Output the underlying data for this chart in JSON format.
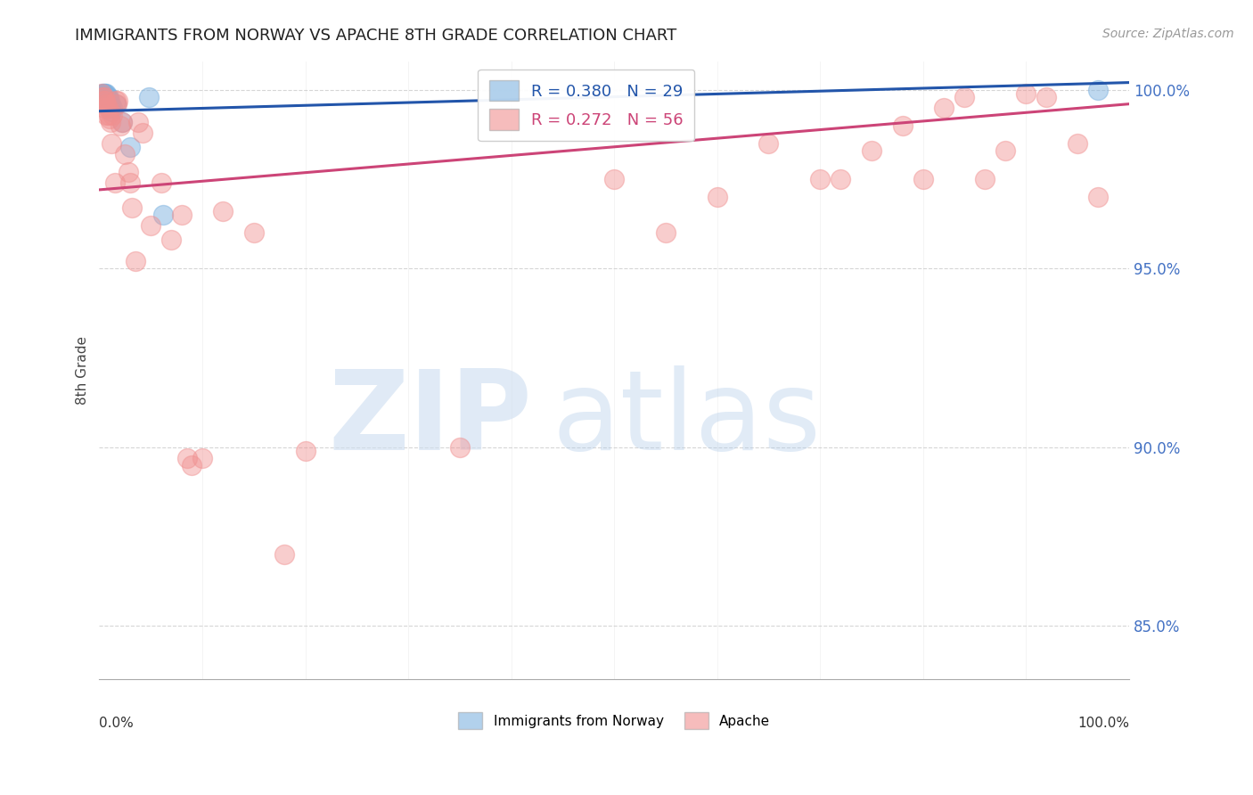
{
  "title": "IMMIGRANTS FROM NORWAY VS APACHE 8TH GRADE CORRELATION CHART",
  "source": "Source: ZipAtlas.com",
  "ylabel": "8th Grade",
  "legend_blue_r": "R = 0.380",
  "legend_blue_n": "N = 29",
  "legend_pink_r": "R = 0.272",
  "legend_pink_n": "N = 56",
  "ytick_vals": [
    0.85,
    0.9,
    0.95,
    1.0
  ],
  "ytick_labels": [
    "85.0%",
    "90.0%",
    "95.0%",
    "100.0%"
  ],
  "xlim": [
    0.0,
    1.0
  ],
  "ylim": [
    0.835,
    1.008
  ],
  "blue_color": "#7fb3e0",
  "pink_color": "#f09090",
  "blue_line_color": "#2255aa",
  "pink_line_color": "#cc4477",
  "grid_color": "#cccccc",
  "blue_scatter_x": [
    0.003,
    0.003,
    0.004,
    0.004,
    0.004,
    0.005,
    0.005,
    0.005,
    0.006,
    0.006,
    0.006,
    0.007,
    0.007,
    0.007,
    0.008,
    0.008,
    0.009,
    0.009,
    0.01,
    0.01,
    0.011,
    0.012,
    0.013,
    0.016,
    0.022,
    0.03,
    0.048,
    0.062,
    0.97
  ],
  "blue_scatter_y": [
    0.999,
    0.998,
    0.999,
    0.998,
    0.997,
    0.999,
    0.998,
    0.997,
    0.999,
    0.998,
    0.997,
    0.999,
    0.998,
    0.996,
    0.998,
    0.997,
    0.998,
    0.996,
    0.997,
    0.995,
    0.996,
    0.994,
    0.995,
    0.996,
    0.991,
    0.984,
    0.998,
    0.965,
    1.0
  ],
  "pink_scatter_x": [
    0.002,
    0.003,
    0.004,
    0.005,
    0.005,
    0.006,
    0.007,
    0.007,
    0.008,
    0.009,
    0.01,
    0.011,
    0.012,
    0.013,
    0.015,
    0.016,
    0.017,
    0.018,
    0.02,
    0.022,
    0.025,
    0.028,
    0.03,
    0.032,
    0.035,
    0.038,
    0.042,
    0.05,
    0.06,
    0.07,
    0.08,
    0.085,
    0.09,
    0.1,
    0.12,
    0.15,
    0.18,
    0.2,
    0.35,
    0.5,
    0.55,
    0.6,
    0.65,
    0.7,
    0.72,
    0.75,
    0.78,
    0.8,
    0.82,
    0.84,
    0.86,
    0.88,
    0.9,
    0.92,
    0.95,
    0.97
  ],
  "pink_scatter_y": [
    0.999,
    0.998,
    0.997,
    0.998,
    0.995,
    0.997,
    0.996,
    0.993,
    0.995,
    0.993,
    0.992,
    0.991,
    0.985,
    0.993,
    0.974,
    0.997,
    0.996,
    0.997,
    0.99,
    0.991,
    0.982,
    0.977,
    0.974,
    0.967,
    0.952,
    0.991,
    0.988,
    0.962,
    0.974,
    0.958,
    0.965,
    0.897,
    0.895,
    0.897,
    0.966,
    0.96,
    0.87,
    0.899,
    0.9,
    0.975,
    0.96,
    0.97,
    0.985,
    0.975,
    0.975,
    0.983,
    0.99,
    0.975,
    0.995,
    0.998,
    0.975,
    0.983,
    0.999,
    0.998,
    0.985,
    0.97
  ],
  "blue_line_x0": 0.0,
  "blue_line_x1": 1.0,
  "blue_line_y0": 0.994,
  "blue_line_y1": 1.002,
  "pink_line_x0": 0.0,
  "pink_line_x1": 1.0,
  "pink_line_y0": 0.972,
  "pink_line_y1": 0.996
}
